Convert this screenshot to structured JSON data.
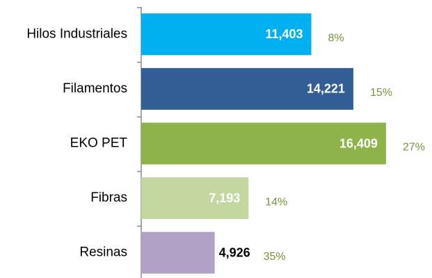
{
  "chart_data": {
    "type": "barh",
    "categories": [
      "Hilos Industriales",
      "Filamentos",
      "EKO PET",
      "Fibras",
      "Resinas"
    ],
    "values": [
      11403,
      14221,
      16409,
      7193,
      4926
    ],
    "value_labels": [
      "11,403",
      "14,221",
      "16,409",
      "7,193",
      "4,926"
    ],
    "colors": [
      "#00b0f0",
      "#335f96",
      "#8db34a",
      "#c3d8a0",
      "#b3a2c8"
    ],
    "value_label_colors": [
      "#ffffff",
      "#ffffff",
      "#ffffff",
      "#ffffff",
      "#000000"
    ],
    "value_label_position": [
      "inside",
      "inside",
      "inside",
      "inside",
      "outside"
    ],
    "annotations": [
      "8%",
      "15%",
      "27%",
      "14%",
      "35%"
    ],
    "annotation_color": "#77933c",
    "xlim": [
      0,
      18000
    ]
  }
}
